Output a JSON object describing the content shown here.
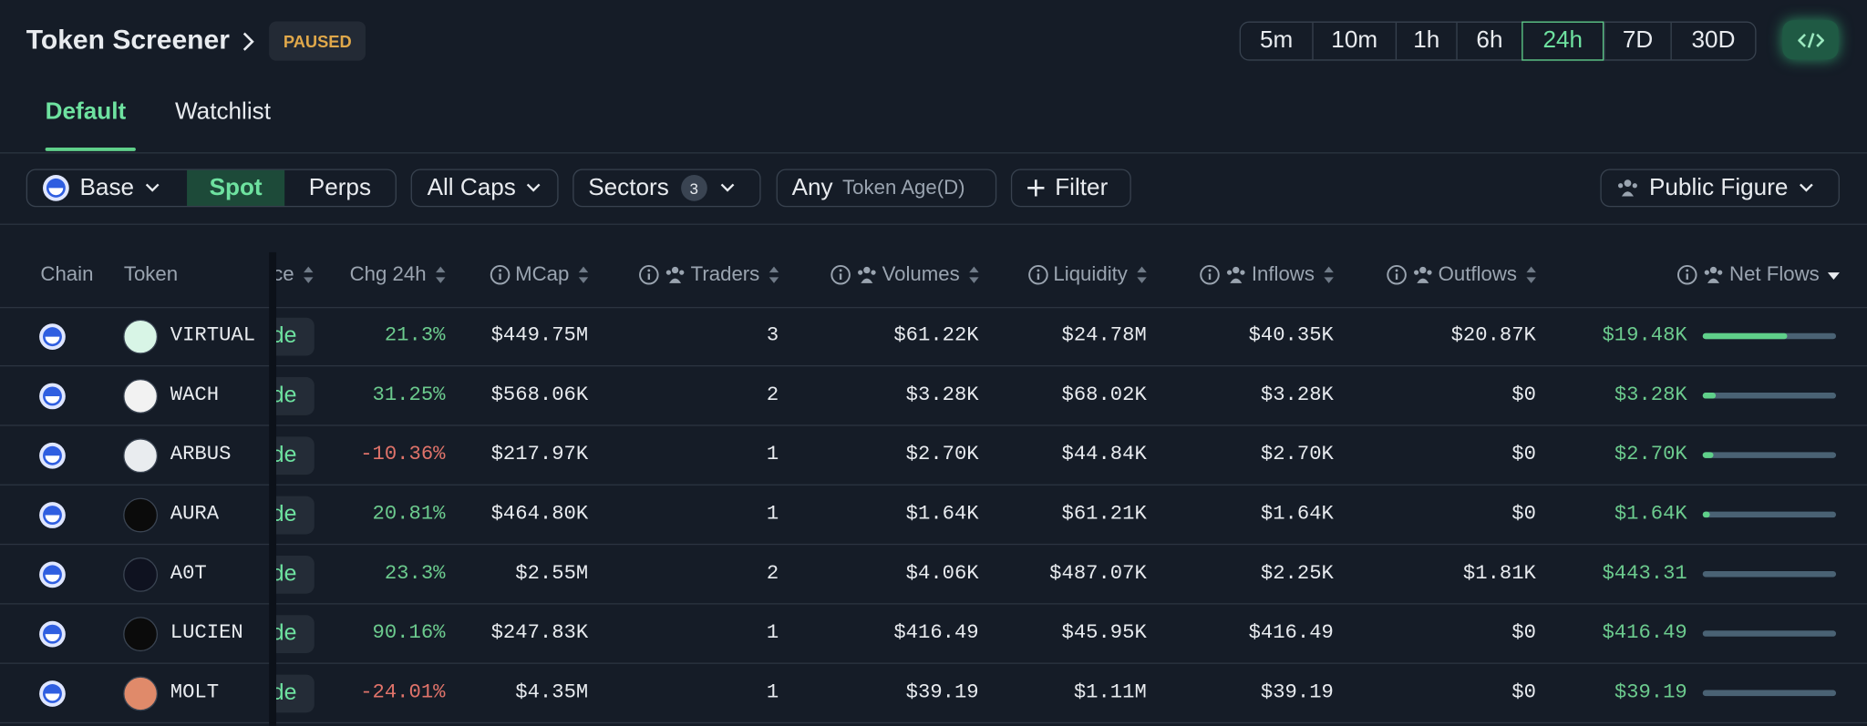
{
  "header": {
    "title": "Token Screener",
    "status": "PAUSED",
    "timeframes": [
      "5m",
      "10m",
      "1h",
      "6h",
      "24h",
      "7D",
      "30D"
    ],
    "active_timeframe": 4
  },
  "tabs": {
    "items": [
      "Default",
      "Watchlist"
    ],
    "active": 0
  },
  "filters": {
    "chain": "Base",
    "markets": [
      "Spot",
      "Perps"
    ],
    "active_market": 0,
    "caps": "All Caps",
    "sectors": "Sectors",
    "sectors_count": 3,
    "age_any": "Any",
    "age_label": "Token Age(D)",
    "add_filter": "Filter",
    "public_figure": "Public Figure"
  },
  "table": {
    "columns": [
      "Chain",
      "Token",
      "ce",
      "Chg 24h",
      "MCap",
      "Traders",
      "Volumes",
      "Liquidity",
      "Inflows",
      "Outflows",
      "Net Flows"
    ],
    "rows": [
      {
        "token": "VIRTUAL",
        "trade": "de",
        "chg_24h": "21.3%",
        "mcap": "$449.75M",
        "traders": 3,
        "volumes": "$61.22K",
        "liquidity": "$24.78M",
        "inflows": "$40.35K",
        "outflows": "$20.87K",
        "net_flows": "$19.48K",
        "net_flow_bar": 0.63
      },
      {
        "token": "WACH",
        "trade": "de",
        "chg_24h": "31.25%",
        "mcap": "$568.06K",
        "traders": 2,
        "volumes": "$3.28K",
        "liquidity": "$68.02K",
        "inflows": "$3.28K",
        "outflows": "$0",
        "net_flows": "$3.28K",
        "net_flow_bar": 0.1
      },
      {
        "token": "ARBUS",
        "trade": "de",
        "chg_24h": "-10.36%",
        "mcap": "$217.97K",
        "traders": 1,
        "volumes": "$2.70K",
        "liquidity": "$44.84K",
        "inflows": "$2.70K",
        "outflows": "$0",
        "net_flows": "$2.70K",
        "net_flow_bar": 0.08
      },
      {
        "token": "AURA",
        "trade": "de",
        "chg_24h": "20.81%",
        "mcap": "$464.80K",
        "traders": 1,
        "volumes": "$1.64K",
        "liquidity": "$61.21K",
        "inflows": "$1.64K",
        "outflows": "$0",
        "net_flows": "$1.64K",
        "net_flow_bar": 0.05
      },
      {
        "token": "A0T",
        "trade": "de",
        "chg_24h": "23.3%",
        "mcap": "$2.55M",
        "traders": 2,
        "volumes": "$4.06K",
        "liquidity": "$487.07K",
        "inflows": "$2.25K",
        "outflows": "$1.81K",
        "net_flows": "$443.31",
        "net_flow_bar": 0
      },
      {
        "token": "LUCIEN",
        "trade": "de",
        "chg_24h": "90.16%",
        "mcap": "$247.83K",
        "traders": 1,
        "volumes": "$416.49",
        "liquidity": "$45.95K",
        "inflows": "$416.49",
        "outflows": "$0",
        "net_flows": "$416.49",
        "net_flow_bar": 0
      },
      {
        "token": "MOLT",
        "trade": "de",
        "chg_24h": "-24.01%",
        "mcap": "$4.35M",
        "traders": 1,
        "volumes": "$39.19",
        "liquidity": "$1.11M",
        "inflows": "$39.19",
        "outflows": "$0",
        "net_flows": "$39.19",
        "net_flow_bar": 0
      }
    ]
  }
}
